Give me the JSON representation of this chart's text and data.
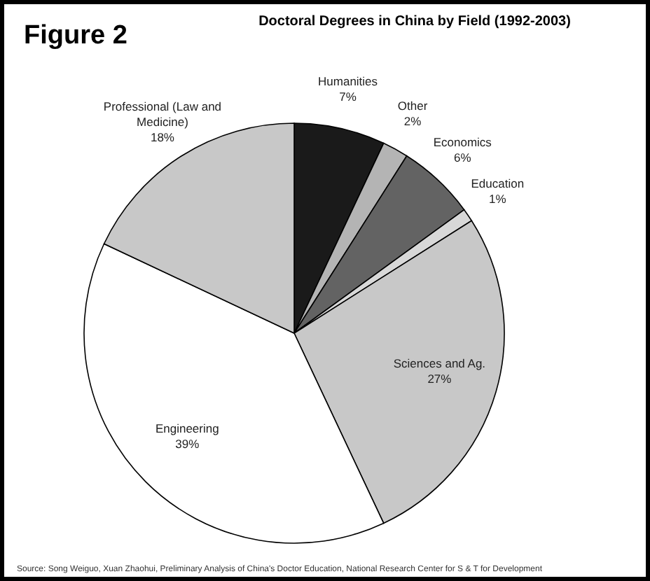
{
  "chart_data": {
    "type": "pie",
    "title": "Doctoral Degrees in China by Field (1992-2003)",
    "categories": [
      "Humanities",
      "Other",
      "Economics",
      "Education",
      "Sciences and Ag.",
      "Engineering",
      "Professional (Law and Medicine)"
    ],
    "values": [
      7,
      2,
      6,
      1,
      27,
      39,
      18
    ],
    "value_labels": [
      "7%",
      "2%",
      "6%",
      "1%",
      "27%",
      "39%",
      "18%"
    ],
    "colors": [
      "#1a1a1a",
      "#b4b4b4",
      "#636363",
      "#d8d8d8",
      "#c8c8c8",
      "#ffffff",
      "#c8c8c8"
    ],
    "annotations": [
      "Figure 2",
      "Source: Song Weiguo, Xuan Zhaohui, Preliminary Analysis of China's Doctor Education, National Research Center for S & T for Development"
    ]
  }
}
